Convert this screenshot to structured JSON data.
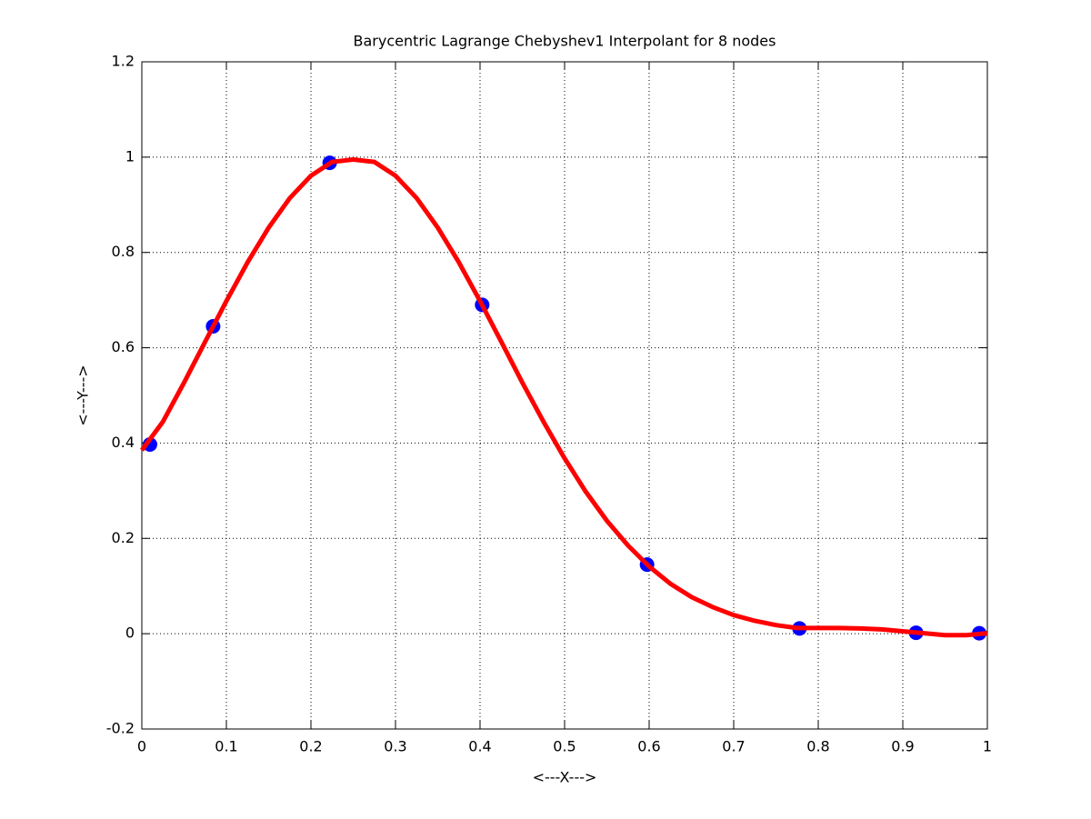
{
  "chart_data": {
    "type": "line",
    "title": "Barycentric Lagrange Chebyshev1 Interpolant for 8 nodes",
    "xlabel": "<---X--->",
    "ylabel": "<---Y--->",
    "xlim": [
      0,
      1
    ],
    "ylim": [
      -0.2,
      1.2
    ],
    "xticks": [
      0,
      0.1,
      0.2,
      0.3,
      0.4,
      0.5,
      0.6,
      0.7,
      0.8,
      0.9,
      1
    ],
    "yticks": [
      -0.2,
      0,
      0.2,
      0.4,
      0.6,
      0.8,
      1,
      1.2
    ],
    "grid": true,
    "series": [
      {
        "style": "line",
        "color": "#ff0000",
        "x": [
          0,
          0.025,
          0.05,
          0.075,
          0.1,
          0.125,
          0.15,
          0.175,
          0.2,
          0.225,
          0.25,
          0.275,
          0.3,
          0.325,
          0.35,
          0.375,
          0.4,
          0.425,
          0.45,
          0.475,
          0.5,
          0.525,
          0.55,
          0.575,
          0.6,
          0.625,
          0.65,
          0.675,
          0.7,
          0.725,
          0.75,
          0.775,
          0.8,
          0.825,
          0.85,
          0.875,
          0.9,
          0.925,
          0.95,
          0.975,
          1
        ],
        "values": [
          0.385,
          0.445,
          0.527,
          0.613,
          0.698,
          0.779,
          0.852,
          0.914,
          0.961,
          0.99,
          0.995,
          0.99,
          0.961,
          0.914,
          0.852,
          0.779,
          0.698,
          0.613,
          0.527,
          0.445,
          0.368,
          0.298,
          0.237,
          0.185,
          0.141,
          0.105,
          0.077,
          0.056,
          0.039,
          0.027,
          0.018,
          0.012,
          0.012,
          0.012,
          0.011,
          0.009,
          0.005,
          0.001,
          -0.003,
          -0.003,
          0.001
        ]
      },
      {
        "style": "markers",
        "color": "#0000ff",
        "x": [
          0.0096,
          0.0843,
          0.2222,
          0.4025,
          0.5975,
          0.7778,
          0.9157,
          0.9904
        ],
        "values": [
          0.397,
          0.645,
          0.988,
          0.69,
          0.145,
          0.011,
          0.002,
          0.001
        ]
      }
    ]
  }
}
